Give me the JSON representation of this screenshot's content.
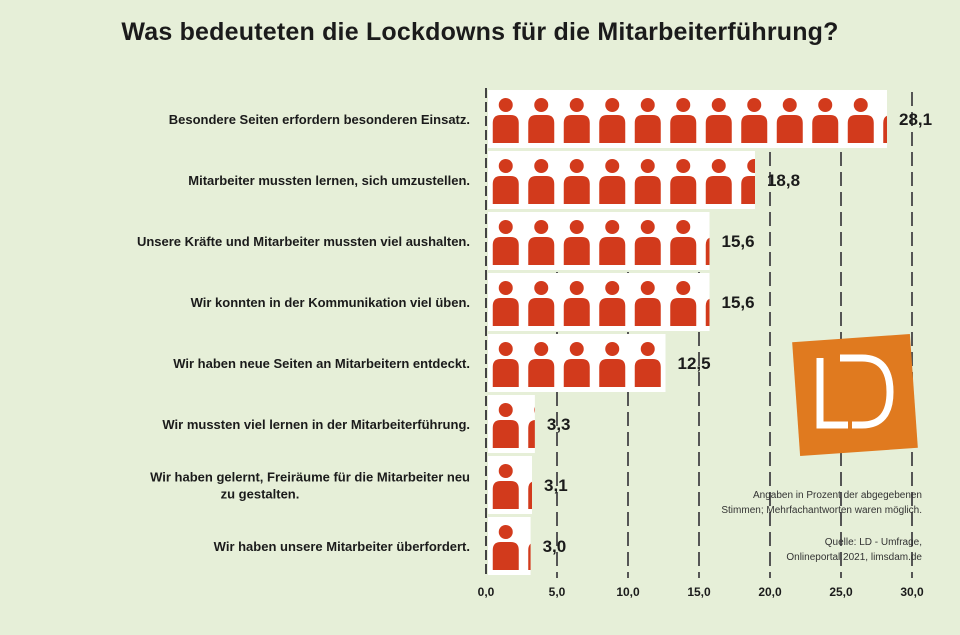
{
  "colors": {
    "background": "#e6efd8",
    "person": "#d23a1c",
    "logo": "#e07a1f"
  },
  "chart_data": {
    "type": "bar",
    "title": "Was bedeuteten die Lockdowns für die Mitarbeiterführung?",
    "categories": [
      "Besondere Seiten erfordern besonderen Einsatz.",
      "Mitarbeiter mussten lernen, sich umzustellen.",
      "Unsere Kräfte und Mitarbeiter mussten viel aushalten.",
      "Wir konnten in der Kommunikation viel üben.",
      "Wir haben neue Seiten an Mitarbeitern entdeckt.",
      "Wir mussten viel lernen in der Mitarbeiterführung.",
      "Wir haben gelernt, Freiräume für die Mitarbeiter neu zu gestalten.",
      "Wir haben unsere Mitarbeiter überfordert."
    ],
    "values": [
      28.1,
      18.8,
      15.6,
      15.6,
      12.5,
      3.3,
      3.1,
      3.0
    ],
    "value_labels": [
      "28,1",
      "18,8",
      "15,6",
      "15,6",
      "12,5",
      "3,3",
      "3,1",
      "3,0"
    ],
    "xlim": [
      0,
      30
    ],
    "x_ticks": [
      "0,0",
      "5,0",
      "10,0",
      "15,0",
      "20,0",
      "25,0",
      "30,0"
    ],
    "unit_per_icon": 2.5,
    "notes": [
      "Angaben in Prozent der abgegebenen",
      "Stimmen; Mehrfachantworten waren möglich."
    ],
    "source": [
      "Quelle: LD - Umfrage,",
      "Onlineportal 2021, limsdam.de"
    ]
  },
  "logo": {
    "text": "LD"
  }
}
